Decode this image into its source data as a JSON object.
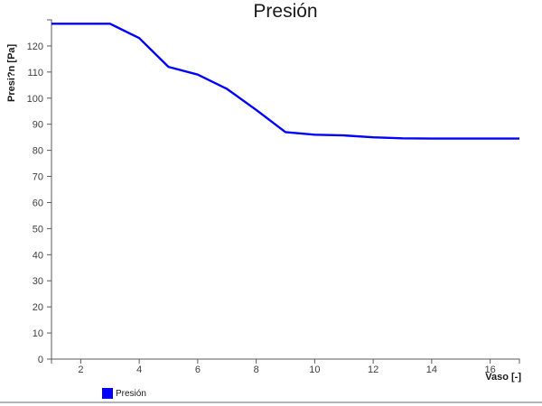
{
  "window": {
    "background_color": "#ffffff",
    "bottom_border_color": "#b0b5bd"
  },
  "chart_data": {
    "type": "line",
    "title": "Presión",
    "xlabel": "Vaso [-]",
    "ylabel": "Presi?n [Pa]",
    "x": [
      1,
      2,
      3,
      4,
      5,
      6,
      7,
      8,
      9,
      10,
      11,
      12,
      13,
      14,
      15,
      16,
      17
    ],
    "series": [
      {
        "name": "Presión",
        "color": "#0000ff",
        "values": [
          128.5,
          128.5,
          128.5,
          123,
          112,
          109,
          103.5,
          95.5,
          87,
          86,
          85.7,
          85,
          84.6,
          84.5,
          84.5,
          84.5,
          84.5
        ]
      }
    ],
    "xlim": [
      1,
      17
    ],
    "ylim": [
      0,
      130
    ],
    "x_ticks": [
      2,
      4,
      6,
      8,
      10,
      12,
      14,
      16
    ],
    "y_ticks": [
      0,
      10,
      20,
      30,
      40,
      50,
      60,
      70,
      80,
      90,
      100,
      110,
      120
    ],
    "grid": false,
    "legend": {
      "entries": [
        "Presión"
      ],
      "position": "bottom-left"
    },
    "axis_color": "#5a5a5a",
    "tick_label_color": "#404040"
  }
}
